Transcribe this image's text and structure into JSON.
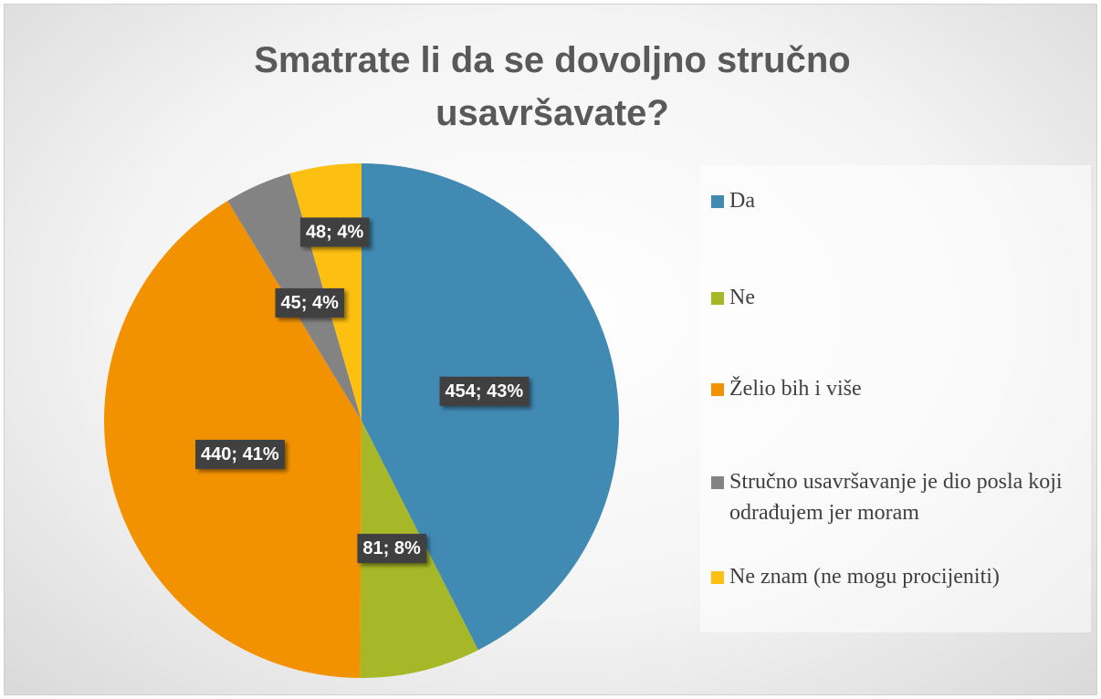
{
  "chart_data": {
    "type": "pie",
    "title": "Smatrate li da se dovoljno stručno usavršavate?",
    "categories": [
      "Da",
      "Ne",
      "Želio bih i više",
      "Stručno usavršavanje je dio posla koji odrađujem jer moram",
      "Ne znam (ne mogu procijeniti)"
    ],
    "values": [
      454,
      81,
      440,
      45,
      48
    ],
    "value_labels": [
      "454; 43%",
      "81; 8%",
      "440; 41%",
      "45; 4%",
      "48; 4%"
    ],
    "colors": [
      "#418ab3",
      "#a6b727",
      "#f39200",
      "#838383",
      "#fdc010"
    ],
    "legend": "right"
  }
}
